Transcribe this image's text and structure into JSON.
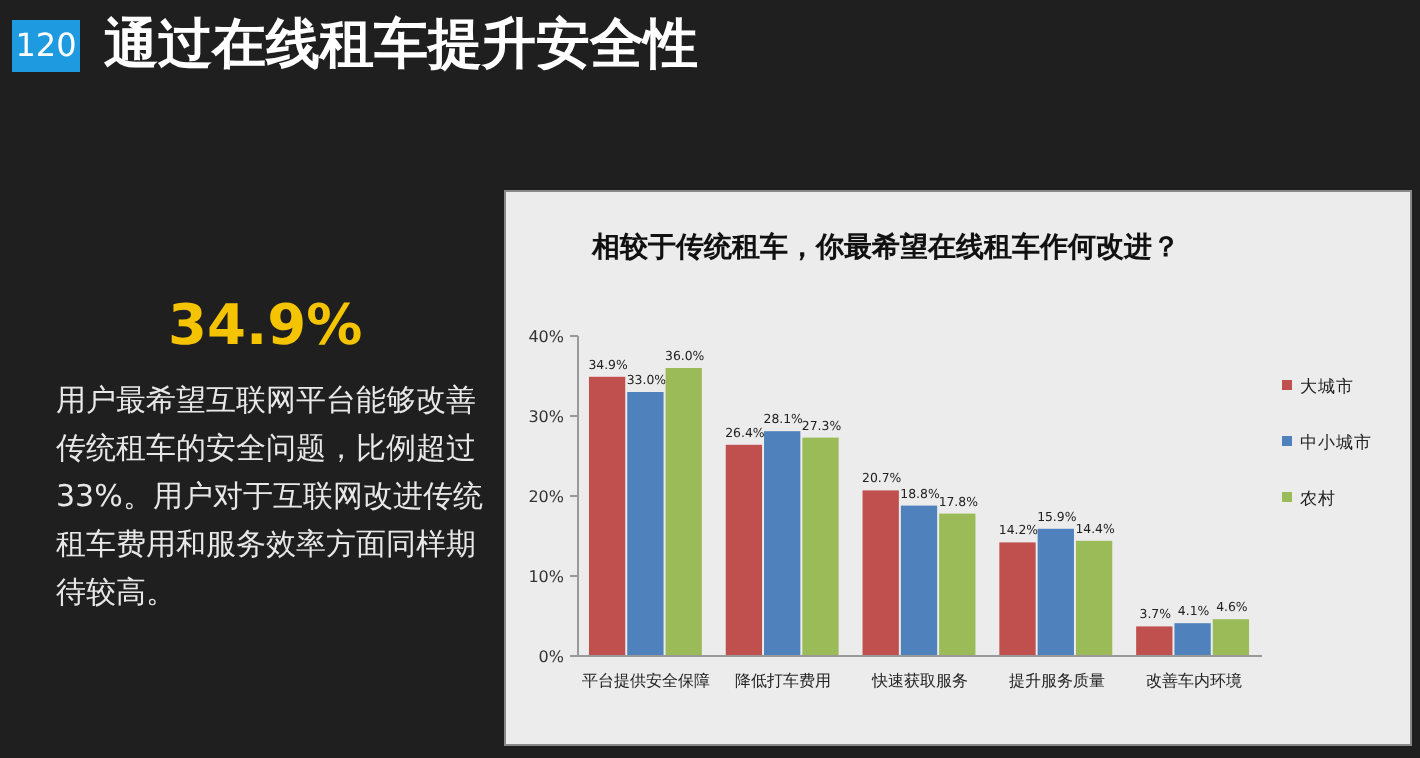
{
  "chart_data": {
    "type": "bar",
    "title": "相较于传统租车，你最希望在线租车作何改进？",
    "categories": [
      "平台提供安全保障",
      "降低打车费用",
      "快速获取服务",
      "提升服务质量",
      "改善车内环境"
    ],
    "series": [
      {
        "name": "大城市",
        "color": "#c0504d",
        "values": [
          34.9,
          26.4,
          20.7,
          14.2,
          3.7
        ],
        "value_labels": [
          "34.9%",
          "26.4%",
          "20.7%",
          "14.2%",
          "3.7%"
        ]
      },
      {
        "name": "中小城市",
        "color": "#4f81bd",
        "values": [
          33.0,
          28.1,
          18.8,
          15.9,
          4.1
        ],
        "value_labels": [
          "33.0%",
          "28.1%",
          "18.8%",
          "15.9%",
          "4.1%"
        ]
      },
      {
        "name": "农村",
        "color": "#9bbb59",
        "values": [
          36.0,
          27.3,
          17.8,
          14.4,
          4.6
        ],
        "value_labels": [
          "36.0%",
          "27.3%",
          "17.8%",
          "14.4%",
          "4.6%"
        ]
      }
    ],
    "ylim": [
      0,
      40
    ],
    "yticks": [
      {
        "value": 0,
        "label": "0%"
      },
      {
        "value": 10,
        "label": "10%"
      },
      {
        "value": 20,
        "label": "20%"
      },
      {
        "value": 30,
        "label": "30%"
      },
      {
        "value": 40,
        "label": "40%"
      }
    ],
    "legend": "right",
    "annotations": [
      "120",
      "通过在线租车提升安全性",
      "34.9%",
      "用户最希望互联网平台能够改善传统租车的安全问题，比例超过33%。用户对于互联网改进传统租车费用和服务效率方面同样期待较高。"
    ]
  }
}
